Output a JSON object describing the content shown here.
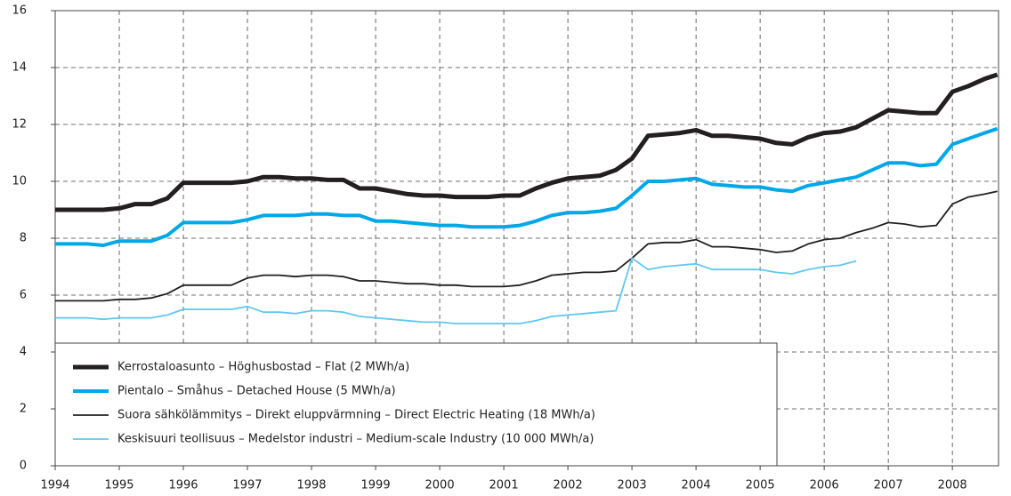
{
  "chart_data": {
    "type": "line",
    "x": [
      1994.0,
      1994.25,
      1994.5,
      1994.75,
      1995.0,
      1995.25,
      1995.5,
      1995.75,
      1996.0,
      1996.25,
      1996.5,
      1996.75,
      1997.0,
      1997.25,
      1997.5,
      1997.75,
      1998.0,
      1998.25,
      1998.5,
      1998.75,
      1999.0,
      1999.25,
      1999.5,
      1999.75,
      2000.0,
      2000.25,
      2000.5,
      2000.75,
      2001.0,
      2001.25,
      2001.5,
      2001.75,
      2002.0,
      2002.25,
      2002.5,
      2002.75,
      2003.0,
      2003.25,
      2003.5,
      2003.75,
      2004.0,
      2004.25,
      2004.5,
      2004.75,
      2005.0,
      2005.25,
      2005.5,
      2005.75,
      2006.0,
      2006.25,
      2006.5,
      2006.75,
      2007.0,
      2007.25,
      2007.5,
      2007.75,
      2008.0,
      2008.25,
      2008.5,
      2008.7
    ],
    "series": [
      {
        "name": "Kerrostaloasunto – Höghusbostad – Flat (2 MWh/a)",
        "color": "#231f20",
        "width": 5,
        "values": [
          9.0,
          9.0,
          9.0,
          9.0,
          9.05,
          9.2,
          9.2,
          9.4,
          9.95,
          9.95,
          9.95,
          9.95,
          10.0,
          10.15,
          10.15,
          10.1,
          10.1,
          10.05,
          10.05,
          9.75,
          9.75,
          9.65,
          9.55,
          9.5,
          9.5,
          9.45,
          9.45,
          9.45,
          9.5,
          9.5,
          9.75,
          9.95,
          10.1,
          10.15,
          10.2,
          10.4,
          10.8,
          11.6,
          11.65,
          11.7,
          11.8,
          11.6,
          11.6,
          11.55,
          11.5,
          11.35,
          11.3,
          11.55,
          11.7,
          11.75,
          11.9,
          12.2,
          12.5,
          12.45,
          12.4,
          12.4,
          13.15,
          13.35,
          13.6,
          13.75
        ]
      },
      {
        "name": "Pientalo – Småhus – Detached House (5 MWh/a)",
        "color": "#00a8e8",
        "width": 4,
        "values": [
          7.8,
          7.8,
          7.8,
          7.75,
          7.9,
          7.9,
          7.9,
          8.1,
          8.55,
          8.55,
          8.55,
          8.55,
          8.65,
          8.8,
          8.8,
          8.8,
          8.85,
          8.85,
          8.8,
          8.8,
          8.6,
          8.6,
          8.55,
          8.5,
          8.45,
          8.45,
          8.4,
          8.4,
          8.4,
          8.45,
          8.6,
          8.8,
          8.9,
          8.9,
          8.95,
          9.05,
          9.5,
          10.0,
          10.0,
          10.05,
          10.1,
          9.9,
          9.85,
          9.8,
          9.8,
          9.7,
          9.65,
          9.85,
          9.95,
          10.05,
          10.15,
          10.4,
          10.65,
          10.65,
          10.55,
          10.6,
          11.3,
          11.5,
          11.7,
          11.85
        ]
      },
      {
        "name": "Suora sähkölämmitys – Direkt eluppvärmning – Direct Electric Heating (18 MWh/a)",
        "color": "#231f20",
        "width": 1.8,
        "values": [
          5.8,
          5.8,
          5.8,
          5.8,
          5.85,
          5.85,
          5.9,
          6.05,
          6.35,
          6.35,
          6.35,
          6.35,
          6.6,
          6.7,
          6.7,
          6.65,
          6.7,
          6.7,
          6.65,
          6.5,
          6.5,
          6.45,
          6.4,
          6.4,
          6.35,
          6.35,
          6.3,
          6.3,
          6.3,
          6.35,
          6.5,
          6.7,
          6.75,
          6.8,
          6.8,
          6.85,
          7.3,
          7.8,
          7.85,
          7.85,
          7.95,
          7.7,
          7.7,
          7.65,
          7.6,
          7.5,
          7.55,
          7.8,
          7.95,
          8.0,
          8.2,
          8.35,
          8.55,
          8.5,
          8.4,
          8.45,
          9.2,
          9.45,
          9.55,
          9.65
        ]
      },
      {
        "name": "Keskisuuri teollisuus – Medelstor industri – Medium-scale Industry (10 000 MWh/a)",
        "color": "#5ec8f0",
        "width": 1.8,
        "values": [
          5.2,
          5.2,
          5.2,
          5.15,
          5.2,
          5.2,
          5.2,
          5.3,
          5.5,
          5.5,
          5.5,
          5.5,
          5.6,
          5.4,
          5.4,
          5.35,
          5.45,
          5.45,
          5.4,
          5.25,
          5.2,
          5.15,
          5.1,
          5.05,
          5.05,
          5.0,
          5.0,
          5.0,
          5.0,
          5.0,
          5.1,
          5.25,
          5.3,
          5.35,
          5.4,
          5.45,
          7.3,
          6.9,
          7.0,
          7.05,
          7.1,
          6.9,
          6.9,
          6.9,
          6.9,
          6.8,
          6.75,
          6.9,
          7.0,
          7.05,
          7.2,
          null,
          null,
          null,
          null,
          null,
          null,
          null,
          null,
          null
        ]
      }
    ],
    "xlim": [
      1994,
      2008.72
    ],
    "xticks": [
      1994,
      1995,
      1996,
      1997,
      1998,
      1999,
      2000,
      2001,
      2002,
      2003,
      2004,
      2005,
      2006,
      2007,
      2008
    ],
    "ylim": [
      0,
      16
    ],
    "yticks": [
      0,
      2,
      4,
      6,
      8,
      10,
      12,
      14,
      16
    ],
    "grid": true,
    "legend": "lower left"
  }
}
